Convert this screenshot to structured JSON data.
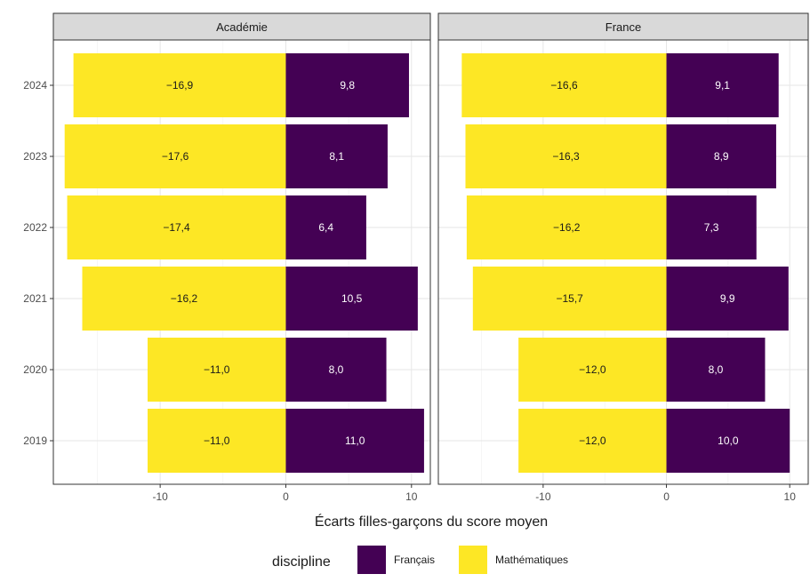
{
  "chart_data": {
    "type": "bar",
    "orientation": "horizontal",
    "stacked": "diverging",
    "categories": [
      "2024",
      "2023",
      "2022",
      "2021",
      "2020",
      "2019"
    ],
    "xlabel": "Écarts filles-garçons du score moyen",
    "xlim": [
      -18.5,
      11.5
    ],
    "xticks": [
      -10,
      0,
      10
    ],
    "xtick_labels": [
      "-10",
      "0",
      "10"
    ],
    "grid": true,
    "legend": {
      "title": "discipline",
      "position": "bottom",
      "entries": [
        {
          "label": "Français",
          "color": "#440154"
        },
        {
          "label": "Mathématiques",
          "color": "#fde725"
        }
      ]
    },
    "panels": [
      {
        "title": "Académie",
        "series": [
          {
            "name": "Mathématiques",
            "values": [
              -16.9,
              -17.6,
              -17.4,
              -16.2,
              -11.0,
              -11.0
            ],
            "labels": [
              "−16,9",
              "−17,6",
              "−17,4",
              "−16,2",
              "−11,0",
              "−11,0"
            ]
          },
          {
            "name": "Français",
            "values": [
              9.8,
              8.1,
              6.4,
              10.5,
              8.0,
              11.0
            ],
            "labels": [
              "9,8",
              "8,1",
              "6,4",
              "10,5",
              "8,0",
              "11,0"
            ]
          }
        ]
      },
      {
        "title": "France",
        "series": [
          {
            "name": "Mathématiques",
            "values": [
              -16.6,
              -16.3,
              -16.2,
              -15.7,
              -12.0,
              -12.0
            ],
            "labels": [
              "−16,6",
              "−16,3",
              "−16,2",
              "−15,7",
              "−12,0",
              "−12,0"
            ]
          },
          {
            "name": "Français",
            "values": [
              9.1,
              8.9,
              7.3,
              9.9,
              8.0,
              10.0
            ],
            "labels": [
              "9,1",
              "8,9",
              "7,3",
              "9,9",
              "8,0",
              "10,0"
            ]
          }
        ]
      }
    ]
  }
}
